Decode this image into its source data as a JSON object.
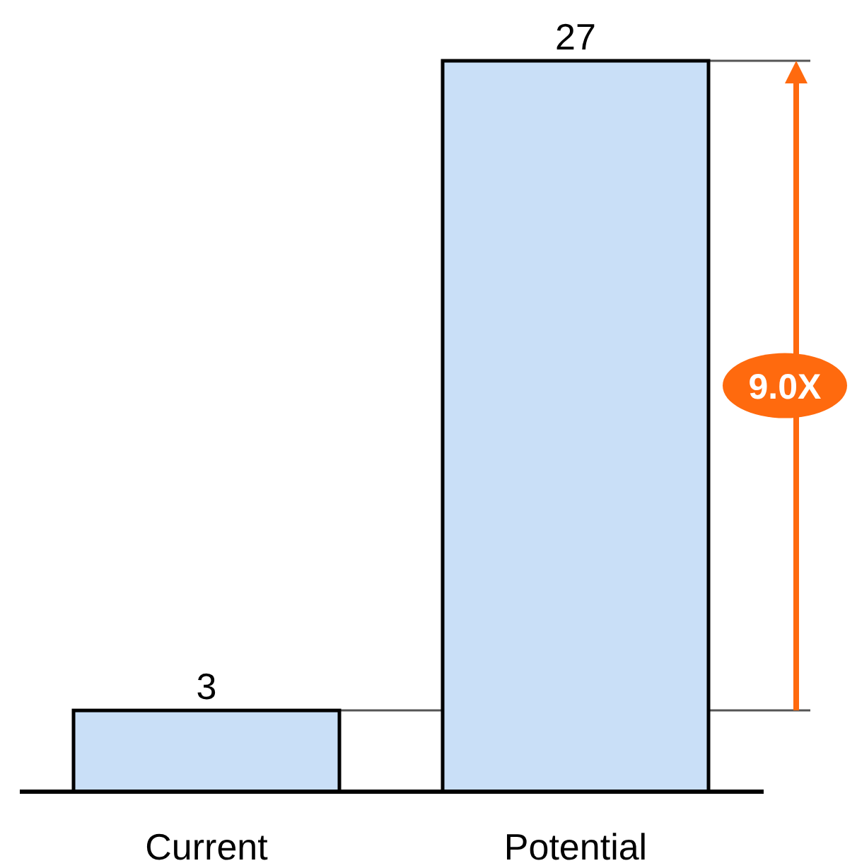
{
  "chart_data": {
    "type": "bar",
    "categories": [
      "Current",
      "Potential"
    ],
    "values": [
      3,
      27
    ],
    "color": "#c9dff7",
    "data_labels": true,
    "ref_lines": [
      {
        "axis": "y",
        "value": 3,
        "color": "#555555"
      },
      {
        "axis": "y",
        "value": 27,
        "color": "#555555"
      }
    ],
    "annotations": [
      "9.0X"
    ]
  }
}
